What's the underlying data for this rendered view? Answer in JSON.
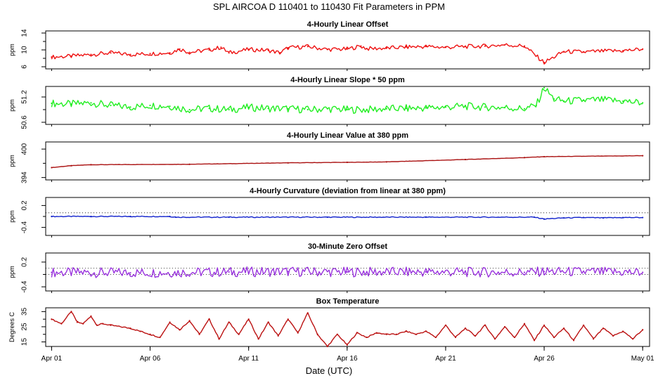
{
  "title": "SPL   AIRCOA D   110401 to 110430   Fit Parameters in PPM",
  "x_axis_label": "Date (UTC)",
  "colors": {
    "frame": "#000000",
    "background": "#ffffff"
  },
  "chart_data": [
    {
      "type": "line",
      "title": "4-Hourly Linear Offset",
      "ylabel": "ppm",
      "ylim": [
        5.5,
        14.5
      ],
      "yticks": [
        6,
        10,
        14
      ],
      "ytick_labels": [
        "6",
        "10",
        "14"
      ],
      "minor_yticks": [
        8,
        12
      ],
      "color": "#ee1111",
      "x": [
        1,
        2,
        3,
        4,
        5,
        6,
        7,
        7.5,
        8,
        9,
        9.6,
        10,
        11,
        12,
        12.6,
        13,
        14,
        15,
        16,
        16.7,
        17,
        18,
        19,
        20,
        21,
        22,
        23,
        24,
        25,
        26,
        27,
        28,
        29,
        30,
        31
      ],
      "values": [
        8.3,
        8.5,
        8.9,
        9.3,
        8.9,
        9.1,
        9.3,
        10.2,
        9.4,
        10.0,
        10.6,
        9.3,
        10.1,
        9.9,
        9.3,
        10.5,
        10.8,
        10.1,
        10.2,
        10.9,
        10.3,
        10.4,
        10.7,
        10.8,
        10.6,
        10.8,
        10.9,
        11.2,
        10.9,
        7.0,
        9.6,
        9.5,
        9.7,
        9.8,
        10.2
      ],
      "noise_amplitude": 0.5
    },
    {
      "type": "line",
      "title": "4-Hourly Linear Slope * 50 ppm",
      "ylabel": "ppm",
      "ylim": [
        50.55,
        51.45
      ],
      "yticks": [
        50.6,
        51.2
      ],
      "ytick_labels": [
        "50.6",
        "51.2"
      ],
      "minor_yticks": [
        50.9
      ],
      "color": "#22ee22",
      "x": [
        1,
        2,
        3,
        4,
        5,
        6,
        7,
        8,
        9,
        10,
        11,
        12,
        13,
        14,
        15,
        16,
        17,
        18,
        19,
        20,
        21,
        22,
        23,
        24,
        25,
        25.6,
        26,
        26.5,
        27,
        28,
        29,
        30,
        31
      ],
      "values": [
        51.05,
        51.03,
        51.06,
        51.0,
        50.96,
        51.0,
        50.98,
        50.9,
        50.93,
        50.9,
        50.95,
        50.93,
        50.92,
        50.9,
        50.92,
        50.9,
        50.9,
        50.92,
        50.93,
        50.94,
        50.96,
        50.98,
        50.96,
        50.95,
        50.92,
        51.0,
        51.42,
        51.15,
        51.1,
        51.12,
        51.13,
        51.1,
        51.06
      ],
      "noise_amplitude": 0.09
    },
    {
      "type": "line",
      "title": "4-Hourly Linear Value at 380 ppm",
      "ylabel": "ppm",
      "ylim": [
        393.5,
        401.5
      ],
      "yticks": [
        394,
        400
      ],
      "ytick_labels": [
        "394",
        "400"
      ],
      "minor_yticks": [
        397
      ],
      "color": "#aa1111",
      "x": [
        1,
        2,
        3,
        8,
        13,
        16,
        18,
        22,
        25,
        26,
        31
      ],
      "values": [
        396.1,
        396.5,
        396.7,
        396.8,
        397.1,
        397.2,
        397.3,
        397.8,
        398.2,
        398.4,
        398.6
      ],
      "noise_amplitude": 0.03
    },
    {
      "type": "line",
      "title": "4-Hourly Curvature (deviation from linear at 380 ppm)",
      "ylabel": "ppm",
      "ylim": [
        -0.62,
        0.42
      ],
      "yticks": [
        -0.4,
        0.2
      ],
      "ytick_labels": [
        "-0.4",
        "0.2"
      ],
      "minor_yticks": [
        -0.1
      ],
      "color": "#1122cc",
      "reference_lines": [
        0
      ],
      "x": [
        1,
        3,
        5,
        7,
        7.3,
        10,
        15,
        20,
        25.5,
        26,
        27,
        28,
        29,
        30,
        31
      ],
      "values": [
        -0.1,
        -0.1,
        -0.1,
        -0.1,
        -0.12,
        -0.12,
        -0.12,
        -0.12,
        -0.12,
        -0.17,
        -0.14,
        -0.13,
        -0.14,
        -0.13,
        -0.13
      ],
      "noise_amplitude": 0.012
    },
    {
      "type": "line",
      "title": "30-Minute Zero Offset",
      "ylabel": "ppm",
      "ylim": [
        -0.5,
        0.42
      ],
      "yticks": [
        -0.4,
        0.2
      ],
      "ytick_labels": [
        "-0.4",
        "0.2"
      ],
      "minor_yticks": [
        -0.1
      ],
      "color": "#9933dd",
      "reference_lines": [
        0.05,
        -0.1
      ],
      "x": [
        1,
        5,
        10,
        13,
        16,
        20,
        25,
        26,
        31
      ],
      "values": [
        -0.05,
        -0.06,
        -0.04,
        -0.03,
        -0.04,
        -0.04,
        -0.05,
        -0.03,
        -0.05
      ],
      "noise_amplitude": 0.12
    },
    {
      "type": "line",
      "title": "Box Temperature",
      "ylabel": "Degrees C",
      "ylim": [
        12,
        37.5
      ],
      "yticks": [
        15,
        25,
        35
      ],
      "ytick_labels": [
        "15",
        "25",
        "35"
      ],
      "minor_yticks": [
        20,
        30
      ],
      "color": "#bb1111",
      "x": [
        1,
        1.5,
        2,
        2.3,
        2.6,
        3,
        3.3,
        3.6,
        4,
        5,
        5.5,
        6,
        6.5,
        7,
        7.5,
        8,
        8.5,
        9,
        9.5,
        10,
        10.5,
        11,
        11.5,
        12,
        12.5,
        13,
        13.5,
        14,
        14.5,
        15,
        15.5,
        16,
        16.5,
        17,
        17.5,
        18,
        18.5,
        19,
        19.5,
        20,
        20.5,
        21,
        21.5,
        22,
        22.5,
        23,
        23.5,
        24,
        24.5,
        25,
        25.5,
        26,
        26.5,
        27,
        27.5,
        28,
        28.5,
        29,
        29.5,
        30,
        30.5,
        31
      ],
      "values": [
        30,
        27,
        35,
        28,
        27,
        32,
        26,
        27,
        26,
        24,
        22,
        20,
        18,
        28,
        23,
        29,
        20,
        30,
        17,
        28,
        20,
        30,
        17,
        28,
        19,
        30,
        21,
        34,
        20,
        12,
        20,
        13,
        21,
        18,
        21,
        20,
        20,
        22,
        20,
        22,
        18,
        26,
        18,
        24,
        19,
        26,
        17,
        25,
        18,
        27,
        16,
        26,
        18,
        24,
        16,
        26,
        17,
        24,
        19,
        22,
        17,
        23
      ],
      "noise_amplitude": 0.4
    }
  ],
  "x_axis": {
    "xlim": [
      0.7,
      31.35
    ],
    "ticks": [
      1,
      6,
      11,
      16,
      21,
      26,
      31
    ],
    "tick_labels": [
      "Apr 01",
      "Apr 06",
      "Apr 11",
      "Apr 16",
      "Apr 21",
      "Apr 26",
      "May 01"
    ]
  }
}
